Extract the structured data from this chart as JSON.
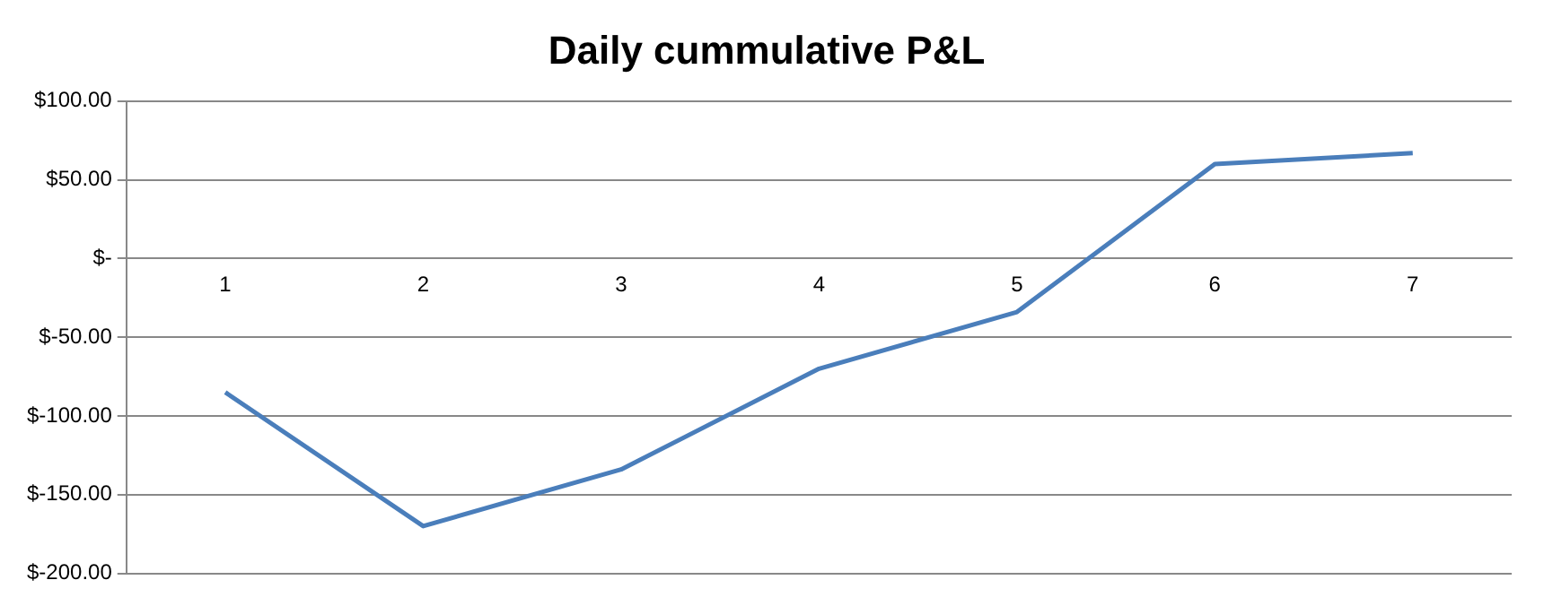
{
  "chart_data": {
    "type": "line",
    "title": "Daily cummulative P&L",
    "categories": [
      "1",
      "2",
      "3",
      "4",
      "5",
      "6",
      "7"
    ],
    "series": [
      {
        "color": "#4a7ebb",
        "values": [
          -85,
          -170,
          -134,
          -70,
          -34,
          60,
          67
        ]
      }
    ],
    "ylim": [
      -200,
      100
    ],
    "yticks": [
      {
        "value": -200,
        "label": "$-200.00"
      },
      {
        "value": -150,
        "label": "$-150.00"
      },
      {
        "value": -100,
        "label": "$-100.00"
      },
      {
        "value": -50,
        "label": "$-50.00"
      },
      {
        "value": 0,
        "label": "$-"
      },
      {
        "value": 50,
        "label": "$50.00"
      },
      {
        "value": 100,
        "label": "$100.00"
      }
    ],
    "grid": "y",
    "legend": false,
    "marker": "none",
    "line_style": "solid"
  }
}
